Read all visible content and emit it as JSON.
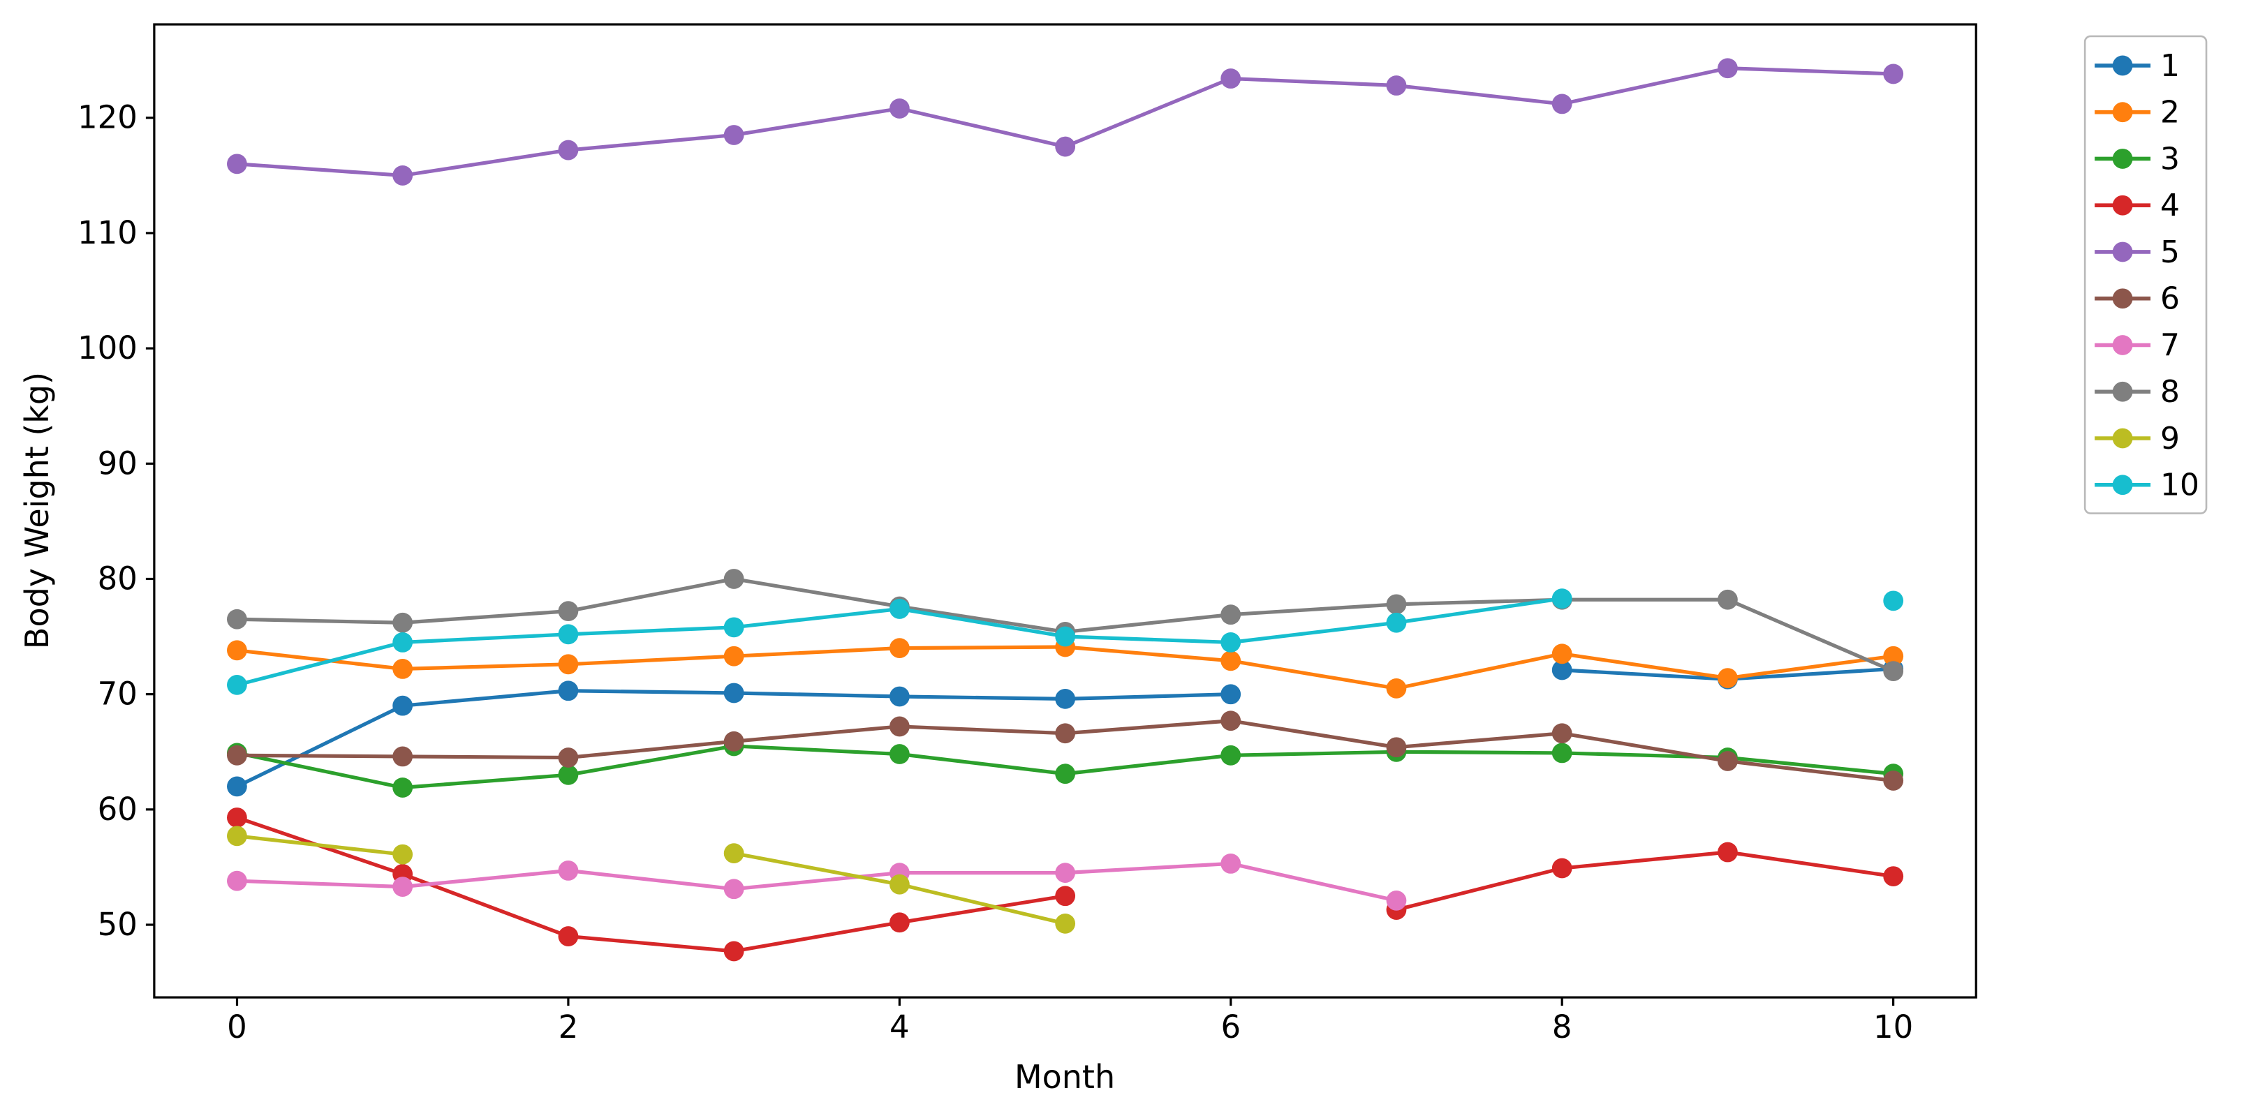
{
  "chart_data": {
    "type": "line",
    "title": "",
    "xlabel": "Month",
    "ylabel": "Body Weight (kg)",
    "x": [
      0,
      1,
      2,
      3,
      4,
      5,
      6,
      7,
      8,
      9,
      10
    ],
    "xticks": [
      0,
      2,
      4,
      6,
      8,
      10
    ],
    "yticks": [
      50,
      60,
      70,
      80,
      90,
      100,
      110,
      120
    ],
    "xlim": [
      -0.5,
      10.5
    ],
    "ylim": [
      43.7,
      128.1
    ],
    "grid": false,
    "legend_position": "outside-right-top",
    "marker": "circle",
    "series": [
      {
        "name": "1",
        "color": "#1f77b4",
        "values": [
          62.0,
          69.0,
          70.3,
          70.1,
          69.8,
          69.6,
          70.0,
          null,
          72.1,
          71.3,
          72.2
        ]
      },
      {
        "name": "2",
        "color": "#ff7f0e",
        "values": [
          73.8,
          72.2,
          72.6,
          73.3,
          74.0,
          74.1,
          72.9,
          70.5,
          73.5,
          71.4,
          73.3
        ]
      },
      {
        "name": "3",
        "color": "#2ca02c",
        "values": [
          64.9,
          61.9,
          63.0,
          65.5,
          64.8,
          63.1,
          64.7,
          65.0,
          64.9,
          64.5,
          63.1
        ]
      },
      {
        "name": "4",
        "color": "#d62728",
        "values": [
          59.3,
          54.4,
          49.0,
          47.7,
          50.2,
          52.5,
          null,
          51.3,
          54.9,
          56.3,
          54.2
        ]
      },
      {
        "name": "5",
        "color": "#9467bd",
        "values": [
          116.0,
          115.0,
          117.2,
          118.5,
          120.8,
          117.5,
          123.4,
          122.8,
          121.2,
          124.3,
          123.8
        ]
      },
      {
        "name": "6",
        "color": "#8c564b",
        "values": [
          64.7,
          64.6,
          64.5,
          65.9,
          67.2,
          66.6,
          67.7,
          65.4,
          66.6,
          64.2,
          62.5
        ]
      },
      {
        "name": "7",
        "color": "#e377c2",
        "values": [
          53.8,
          53.3,
          54.7,
          53.1,
          54.5,
          54.5,
          55.3,
          52.1,
          null,
          null,
          null
        ]
      },
      {
        "name": "8",
        "color": "#7f7f7f",
        "values": [
          76.5,
          76.2,
          77.2,
          80.0,
          77.6,
          75.4,
          76.9,
          77.8,
          78.2,
          78.2,
          72.0
        ]
      },
      {
        "name": "9",
        "color": "#bcbd22",
        "values": [
          57.7,
          56.1,
          null,
          56.2,
          53.5,
          50.1,
          null,
          null,
          null,
          null,
          null
        ]
      },
      {
        "name": "10",
        "color": "#17becf",
        "values": [
          70.8,
          74.5,
          75.2,
          75.8,
          77.4,
          75.0,
          74.5,
          76.2,
          78.3,
          null,
          78.1
        ]
      }
    ]
  }
}
